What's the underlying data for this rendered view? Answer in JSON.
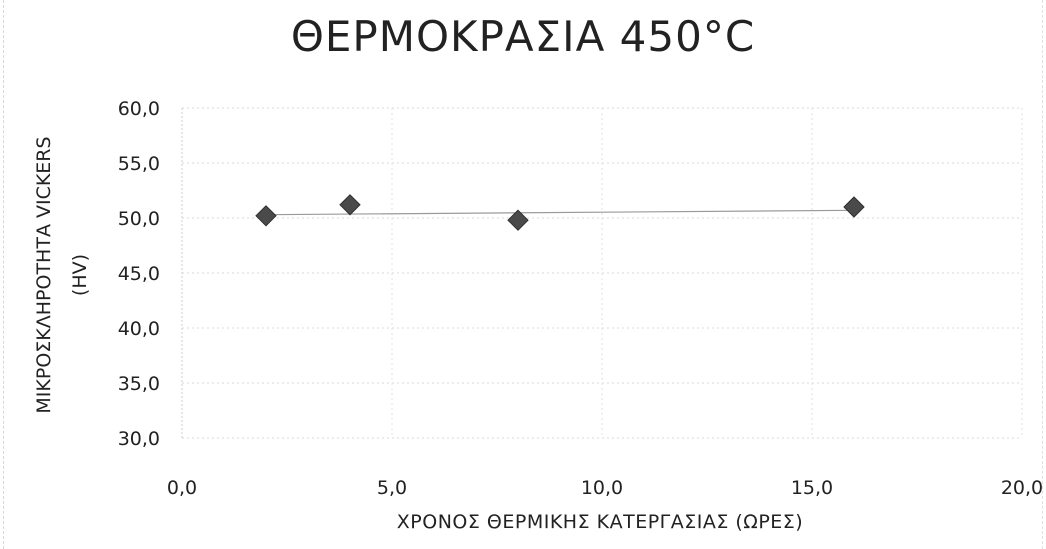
{
  "chart_data": {
    "type": "scatter",
    "title": "ΘΕΡΜΟΚΡΑΣΙΑ 450°C",
    "xlabel": "ΧΡΟΝΟΣ ΘΕΡΜΙΚΗΣ ΚΑΤΕΡΓΑΣΙΑΣ (ΩΡΕΣ)",
    "ylabel": "ΜΙΚΡΟΣΚΛΗΡΟΤΗΤΑ VICKERS",
    "ylabel_unit": "(HV)",
    "xlim": [
      0,
      20
    ],
    "ylim": [
      30,
      60
    ],
    "xticks": [
      "0,0",
      "5,0",
      "10,0",
      "15,0",
      "20,0"
    ],
    "yticks": [
      "60,0",
      "55,0",
      "50,0",
      "45,0",
      "40,0",
      "35,0",
      "30,0"
    ],
    "grid": true,
    "legend": "none",
    "series": [
      {
        "x": [
          2,
          4,
          8,
          16
        ],
        "y": [
          50.2,
          51.2,
          49.8,
          51.0
        ],
        "marker": "diamond",
        "color": "#4a4a4a"
      }
    ],
    "trendline": {
      "x": [
        2,
        16
      ],
      "y": [
        50.3,
        50.7
      ],
      "color": "#9a9a9a"
    }
  }
}
